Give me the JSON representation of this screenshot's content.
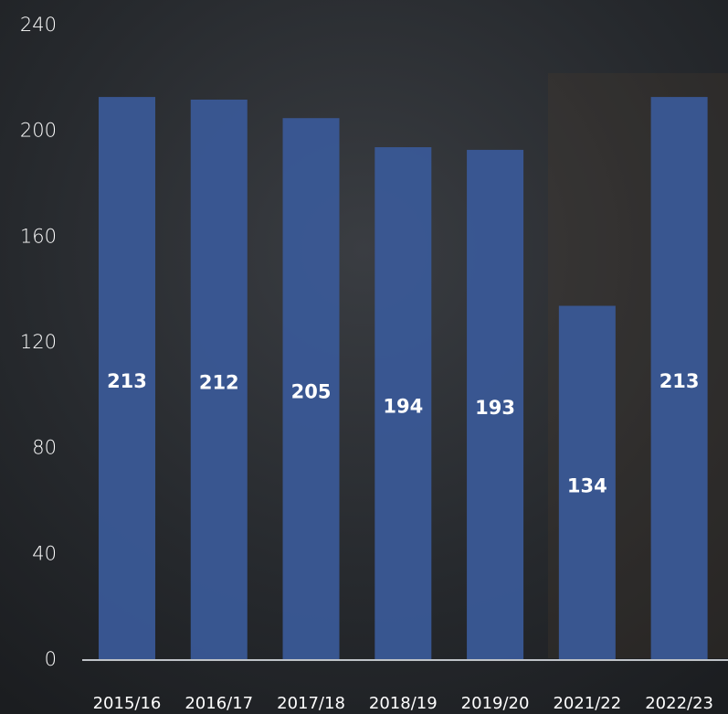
{
  "chart_data": {
    "type": "bar",
    "categories": [
      "2015/16",
      "2016/17",
      "2017/18",
      "2018/19",
      "2019/20",
      "2021/22",
      "2022/23"
    ],
    "values": [
      213,
      212,
      205,
      194,
      193,
      134,
      213
    ],
    "color": "#3a5896",
    "ylim": [
      0,
      240
    ],
    "yticks": [
      0,
      40,
      80,
      120,
      160,
      200,
      240
    ]
  }
}
